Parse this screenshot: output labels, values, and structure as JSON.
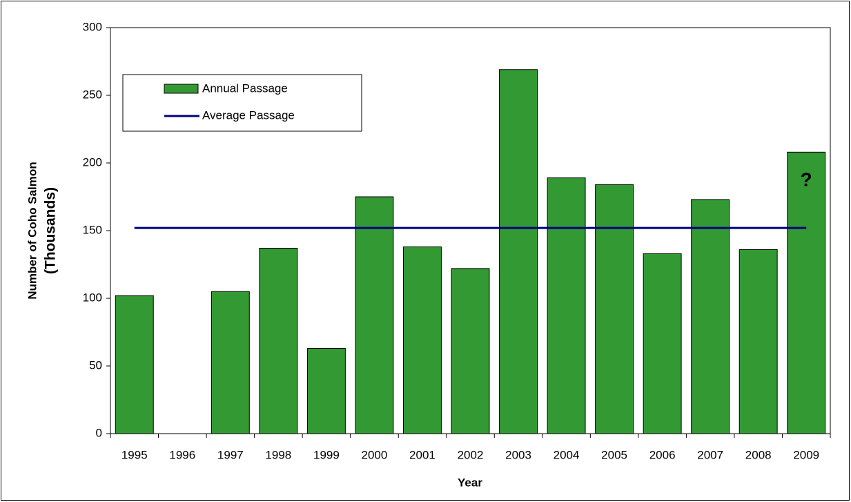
{
  "chart_data": {
    "type": "bar",
    "y_label": "Number of Coho Salmon",
    "y_label_unit": "(Thousands)",
    "x_label": "Year",
    "categories": [
      "1995",
      "1996",
      "1997",
      "1998",
      "1999",
      "2000",
      "2001",
      "2002",
      "2003",
      "2004",
      "2005",
      "2006",
      "2007",
      "2008",
      "2009"
    ],
    "series": [
      {
        "name": "Annual Passage",
        "color": "#339933",
        "values": [
          102,
          null,
          105,
          137,
          63,
          175,
          138,
          122,
          269,
          189,
          184,
          133,
          173,
          136,
          208
        ]
      }
    ],
    "reference_line": {
      "name": "Average Passage",
      "color": "#000080",
      "value": 152
    },
    "annotation": "?",
    "ylim": [
      0,
      300
    ],
    "yticks": [
      0,
      50,
      100,
      150,
      200,
      250,
      300
    ],
    "legend": "upper left"
  }
}
